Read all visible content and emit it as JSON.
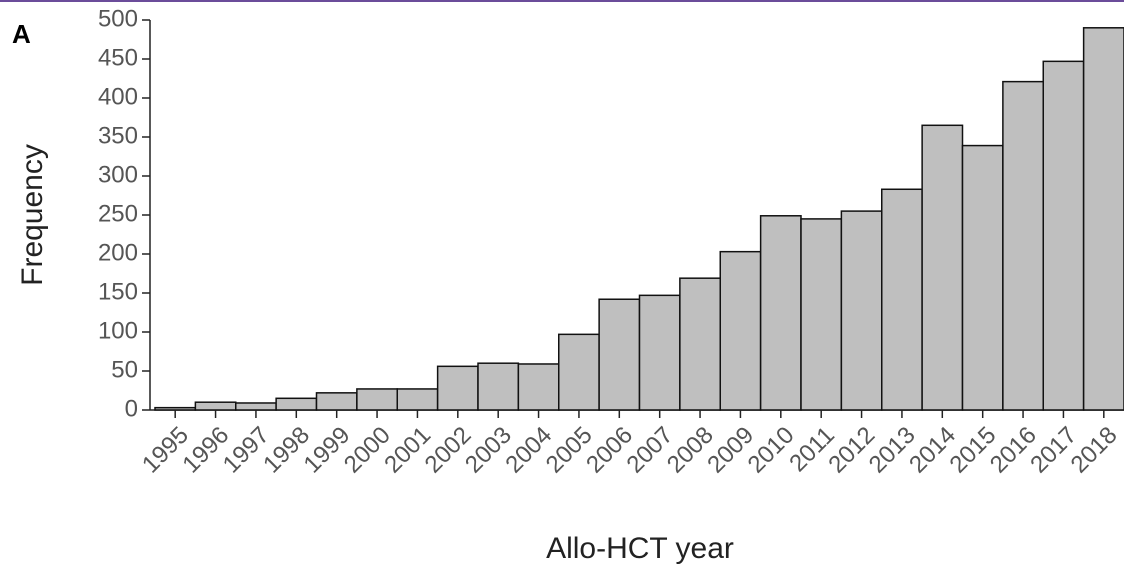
{
  "chart_data": {
    "type": "bar",
    "panel_label": "A",
    "x_label": "Allo-HCT year",
    "y_label": "Frequency",
    "categories": [
      "1995",
      "1996",
      "1997",
      "1998",
      "1999",
      "2000",
      "2001",
      "2002",
      "2003",
      "2004",
      "2005",
      "2006",
      "2007",
      "2008",
      "2009",
      "2010",
      "2011",
      "2012",
      "2013",
      "2014",
      "2015",
      "2016",
      "2017",
      "2018"
    ],
    "values": [
      3,
      10,
      9,
      15,
      22,
      27,
      27,
      56,
      60,
      59,
      97,
      142,
      147,
      169,
      203,
      249,
      245,
      255,
      283,
      365,
      339,
      421,
      447,
      490
    ],
    "color": "#bfbfbf",
    "ylim": [
      0,
      500
    ],
    "yticks": [
      0,
      50,
      100,
      150,
      200,
      250,
      300,
      350,
      400,
      450,
      500
    ]
  }
}
